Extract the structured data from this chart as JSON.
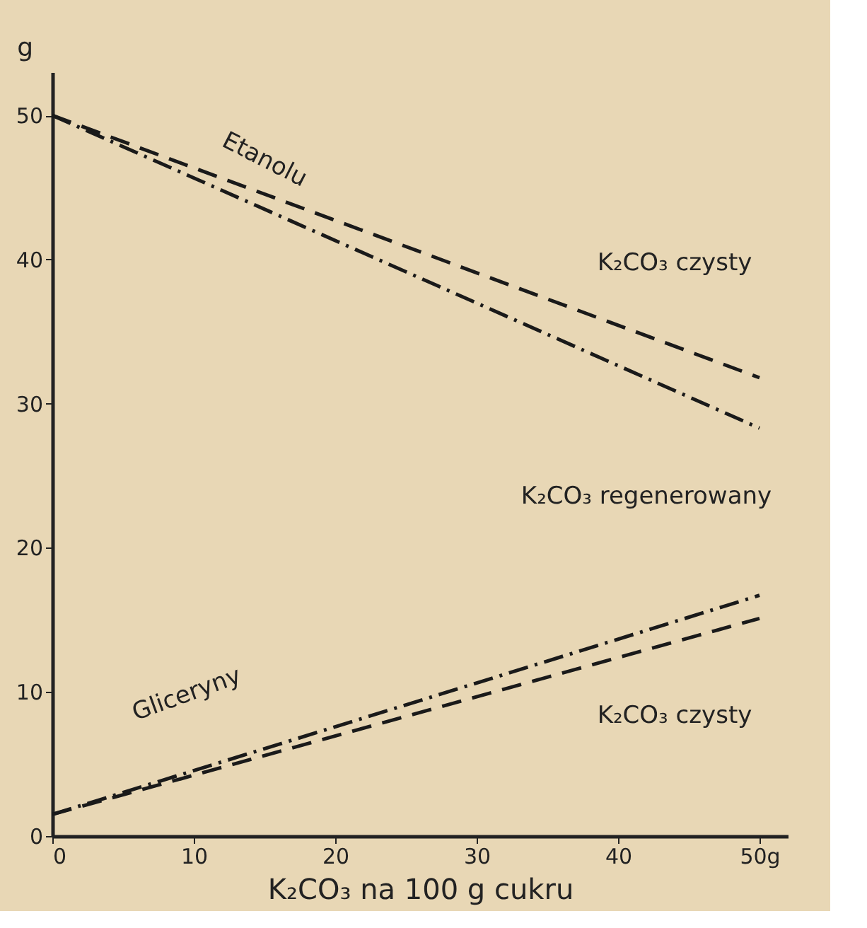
{
  "chart_data": {
    "type": "line",
    "xlabel": "K₂CO₃ na 100 g cukru",
    "ylabel": "g",
    "x": [
      0,
      50
    ],
    "series": [
      {
        "color": "#1a1a1a",
        "values": [
          50,
          31.8
        ],
        "line_style": "dashed"
      },
      {
        "color": "#1a1a1a",
        "values": [
          50,
          28.3
        ],
        "line_style": "dashdot"
      },
      {
        "color": "#1a1a1a",
        "values": [
          1.5,
          16.7
        ],
        "line_style": "dashdot"
      },
      {
        "color": "#1a1a1a",
        "values": [
          1.5,
          15.1
        ],
        "line_style": "dashed"
      }
    ],
    "annotations": [
      "Etanolu",
      "K₂CO₃ czysty",
      "K₂CO₃ regenerowany",
      "Gliceryny",
      "K₂CO₃ czysty"
    ],
    "xlim": [
      0,
      52
    ],
    "ylim": [
      0,
      53
    ],
    "xticks": [
      0,
      10,
      20,
      30,
      40,
      {
        "value": 50,
        "label": "50g"
      }
    ],
    "yticks": [
      0,
      10,
      20,
      30,
      40,
      50
    ],
    "grid": false,
    "marker": "none"
  }
}
